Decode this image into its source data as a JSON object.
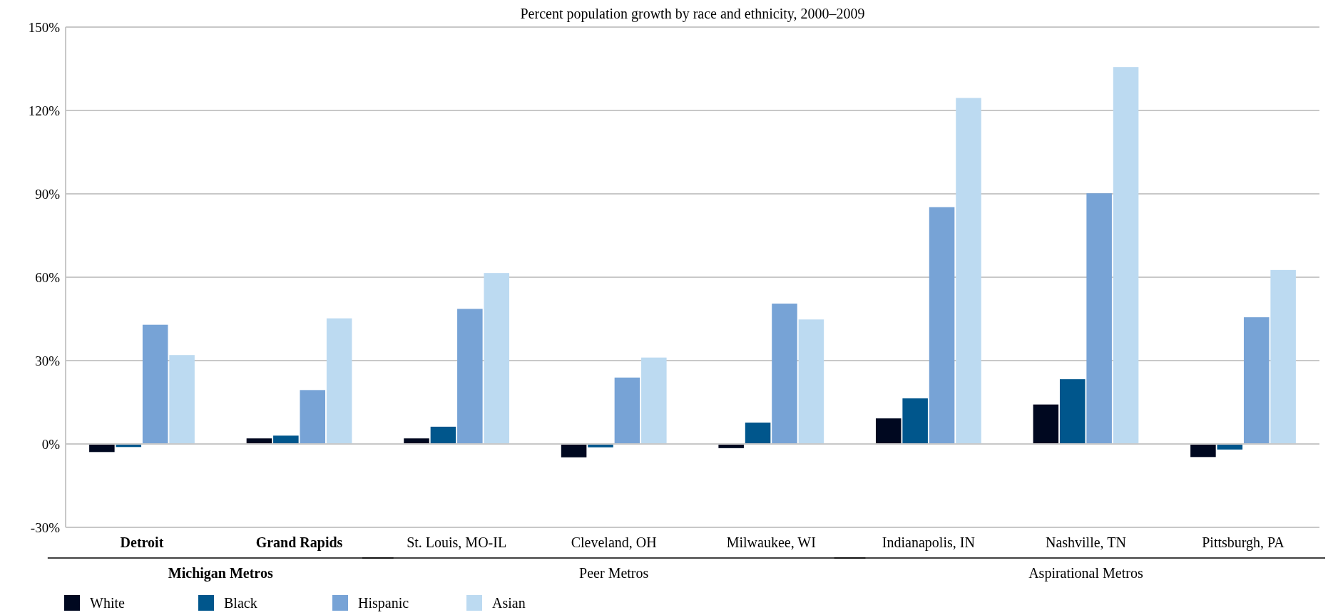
{
  "chart_data": {
    "type": "bar",
    "title": "Percent population growth by race and ethnicity, 2000–2009",
    "categories": [
      "Detroit",
      "Grand Rapids",
      "St. Louis, MO-IL",
      "Cleveland, OH",
      "Milwaukee, WI",
      "Indianapolis, IN",
      "Nashville, TN",
      "Pittsburgh, PA"
    ],
    "series": [
      {
        "name": "White",
        "color": "#000820",
        "values": [
          -2.9,
          2.0,
          2.0,
          -4.8,
          -1.5,
          9.2,
          14.2,
          -4.7
        ]
      },
      {
        "name": "Black",
        "color": "#00568c",
        "values": [
          -1.1,
          3.0,
          6.2,
          -1.2,
          7.7,
          16.4,
          23.3,
          -2.0
        ]
      },
      {
        "name": "Hispanic",
        "color": "#77a3d6",
        "values": [
          42.9,
          19.4,
          48.6,
          23.9,
          50.5,
          85.2,
          90.2,
          45.6
        ]
      },
      {
        "name": "Asian",
        "color": "#bcdaf1",
        "values": [
          32.0,
          45.2,
          61.5,
          31.1,
          44.8,
          124.5,
          135.6,
          62.6
        ]
      }
    ],
    "ylim": [
      -30,
      150
    ],
    "yticks": [
      {
        "value": -30,
        "label": "-30%"
      },
      {
        "value": 0,
        "label": "0%"
      },
      {
        "value": 30,
        "label": "30%"
      },
      {
        "value": 60,
        "label": "60%"
      },
      {
        "value": 90,
        "label": "90%"
      },
      {
        "value": 120,
        "label": "120%"
      },
      {
        "value": 150,
        "label": "150%"
      }
    ],
    "grid": "y",
    "legend": "bottom left",
    "annotations": [
      "Michigan Metros",
      "Peer Metros",
      "Aspirational Metros"
    ]
  }
}
